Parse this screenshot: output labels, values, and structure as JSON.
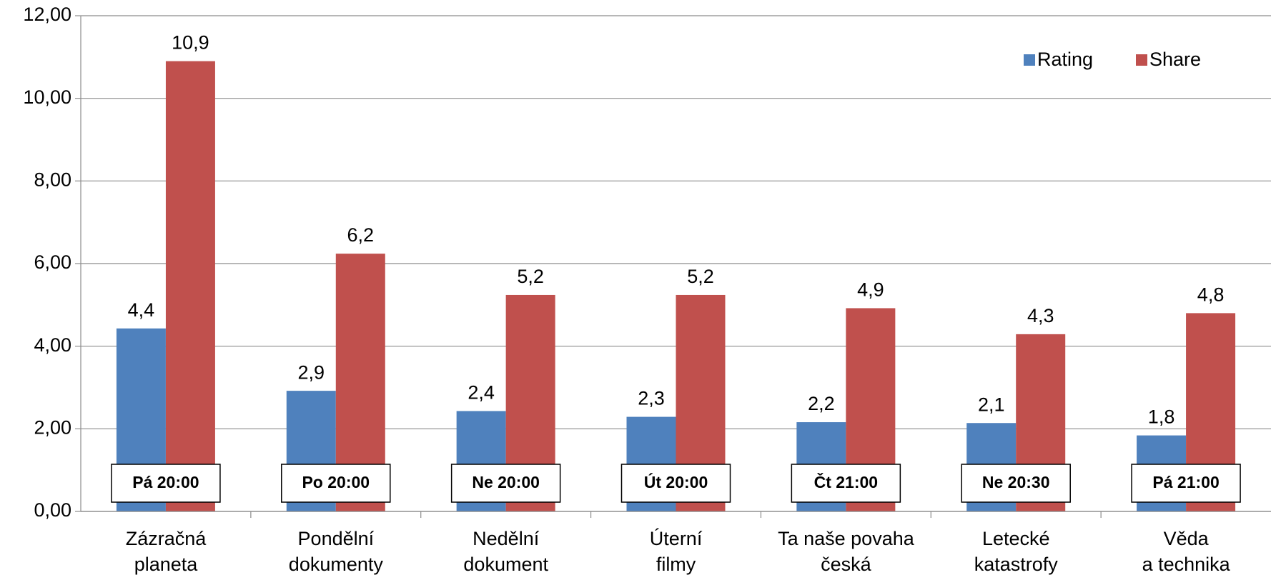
{
  "chart_data": {
    "type": "bar",
    "categories": [
      "Zázračná\nplaneta",
      "Pondělní\ndokumenty",
      "Nedělní\ndokument",
      "Úterní\nfilmy",
      "Ta naše povaha\nčeská",
      "Letecké\nkatastrofy",
      "Věda\na technika"
    ],
    "time_labels": [
      "Pá 20:00",
      "Po 20:00",
      "Ne 20:00",
      "Út 20:00",
      "Čt 21:00",
      "Ne 20:30",
      "Pá 21:00"
    ],
    "series": [
      {
        "name": "Rating",
        "color": "#4f81bd",
        "values": [
          4.43,
          2.92,
          2.43,
          2.29,
          2.16,
          2.14,
          1.84
        ],
        "value_labels": [
          "4,4",
          "2,9",
          "2,4",
          "2,3",
          "2,2",
          "2,1",
          "1,8"
        ]
      },
      {
        "name": "Share",
        "color": "#c0504d",
        "values": [
          10.9,
          6.24,
          5.24,
          5.24,
          4.92,
          4.29,
          4.8
        ],
        "value_labels": [
          "10,9",
          "6,2",
          "5,2",
          "5,2",
          "4,9",
          "4,3",
          "4,8"
        ]
      }
    ],
    "ylim": [
      0,
      12
    ],
    "yticks": [
      {
        "value": 0,
        "label": "0,00"
      },
      {
        "value": 2,
        "label": "2,00"
      },
      {
        "value": 4,
        "label": "4,00"
      },
      {
        "value": 6,
        "label": "6,00"
      },
      {
        "value": 8,
        "label": "8,00"
      },
      {
        "value": 10,
        "label": "10,00"
      },
      {
        "value": 12,
        "label": "12,00"
      }
    ],
    "grid": true,
    "legend": "top-right"
  }
}
